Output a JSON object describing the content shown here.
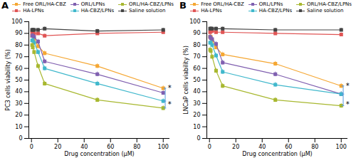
{
  "chart_data": [
    {
      "type": "line",
      "title": "A",
      "xlabel": "Drug concentration (μM)",
      "ylabel": "PC3 cells viability (%)",
      "x": [
        0.5,
        1,
        2,
        5,
        10,
        50,
        100
      ],
      "series": [
        {
          "name": "Free ORL/HA-CBZ",
          "color": "#F5A733",
          "marker": "square",
          "values": [
            88,
            88,
            85,
            79,
            73,
            62,
            43
          ],
          "errors": [
            2,
            2,
            2,
            2,
            2,
            2,
            2
          ]
        },
        {
          "name": "HA-LPNs",
          "color": "#E05555",
          "marker": "square",
          "values": [
            91,
            91,
            90,
            90,
            88,
            90,
            91
          ],
          "errors": [
            1.5,
            1.5,
            1.5,
            1.5,
            1.5,
            1.5,
            1.5
          ]
        },
        {
          "name": "ORL/LPNs",
          "color": "#8060B0",
          "marker": "square",
          "values": [
            88,
            88,
            87,
            83,
            66,
            55,
            39
          ],
          "errors": [
            2,
            2,
            2,
            2,
            2,
            2,
            2
          ]
        },
        {
          "name": "HA-CBZ/LPNs",
          "color": "#40B8CC",
          "marker": "square",
          "values": [
            84,
            84,
            82,
            74,
            60,
            47,
            32
          ],
          "errors": [
            2,
            2,
            2,
            2,
            2,
            2,
            2
          ]
        },
        {
          "name": "ORL/HA-CBZ/LPNs",
          "color": "#A8B830",
          "marker": "square",
          "values": [
            80,
            78,
            74,
            62,
            47,
            33,
            26
          ],
          "errors": [
            2,
            2,
            2,
            2,
            2,
            2,
            2
          ]
        },
        {
          "name": "Saline solution",
          "color": "#444444",
          "marker": "square",
          "values": [
            93,
            93,
            93,
            93,
            94,
            92,
            93
          ],
          "errors": [
            1.5,
            1.5,
            1.5,
            1.5,
            1.5,
            1.5,
            1.5
          ]
        }
      ],
      "xlim": [
        -2,
        105
      ],
      "ylim": [
        0,
        100
      ],
      "xticks": [
        0,
        20,
        40,
        60,
        80,
        100
      ],
      "yticks": [
        0,
        10,
        20,
        30,
        40,
        50,
        60,
        70,
        80,
        90,
        100
      ],
      "grid": false,
      "legend": "top",
      "bracket": {
        "x": 101.5,
        "y": [
          43,
          32,
          26
        ],
        "color": "#5599DD"
      },
      "annotations": [
        {
          "text": "*",
          "x": 103.5,
          "y": 43
        },
        {
          "text": "*",
          "x": 103.5,
          "y": 29
        }
      ]
    },
    {
      "type": "line",
      "title": "B",
      "xlabel": "Drug concentration (μM)",
      "ylabel": "LNCaP cells viability (%)",
      "x": [
        0.5,
        1,
        2,
        5,
        10,
        50,
        100
      ],
      "series": [
        {
          "name": "Free ORL/HA-CBZ",
          "color": "#F5A733",
          "marker": "square",
          "values": [
            87,
            87,
            84,
            78,
            72,
            64,
            45
          ],
          "errors": [
            2,
            2,
            2,
            2,
            2,
            2,
            2
          ]
        },
        {
          "name": "HA-LPNs",
          "color": "#E05555",
          "marker": "square",
          "values": [
            91,
            92,
            92,
            91,
            91,
            90,
            89
          ],
          "errors": [
            1.5,
            1.5,
            1.5,
            1.5,
            1.5,
            1.5,
            1.5
          ]
        },
        {
          "name": "ORL/LPNs",
          "color": "#8060B0",
          "marker": "square",
          "values": [
            87,
            86,
            85,
            81,
            65,
            55,
            38
          ],
          "errors": [
            2,
            2,
            2,
            2,
            2,
            2,
            2
          ]
        },
        {
          "name": "HA-CBZ/LPNs",
          "color": "#40B8CC",
          "marker": "square",
          "values": [
            82,
            82,
            80,
            71,
            57,
            46,
            38
          ],
          "errors": [
            2,
            2,
            2,
            2,
            2,
            2,
            2
          ]
        },
        {
          "name": "ORL/HA-CBZ/LPNs",
          "color": "#A8B830",
          "marker": "square",
          "values": [
            76,
            75,
            70,
            58,
            45,
            33,
            28
          ],
          "errors": [
            2,
            2,
            2,
            2,
            2,
            2,
            2
          ]
        },
        {
          "name": "Saline solution",
          "color": "#444444",
          "marker": "square",
          "values": [
            94,
            94,
            94,
            94,
            94,
            93,
            93
          ],
          "errors": [
            1.5,
            1.5,
            1.5,
            1.5,
            1.5,
            1.5,
            1.5
          ]
        }
      ],
      "xlim": [
        -2,
        105
      ],
      "ylim": [
        0,
        100
      ],
      "xticks": [
        0,
        20,
        40,
        60,
        80,
        100
      ],
      "yticks": [
        0,
        10,
        20,
        30,
        40,
        50,
        60,
        70,
        80,
        90,
        100
      ],
      "grid": false,
      "legend": "top",
      "bracket": {
        "x": 101.5,
        "y": [
          45,
          38,
          28
        ],
        "color": "#5599DD"
      },
      "annotations": [
        {
          "text": "*",
          "x": 103.5,
          "y": 45
        },
        {
          "text": "*",
          "x": 103.5,
          "y": 29
        }
      ]
    }
  ]
}
